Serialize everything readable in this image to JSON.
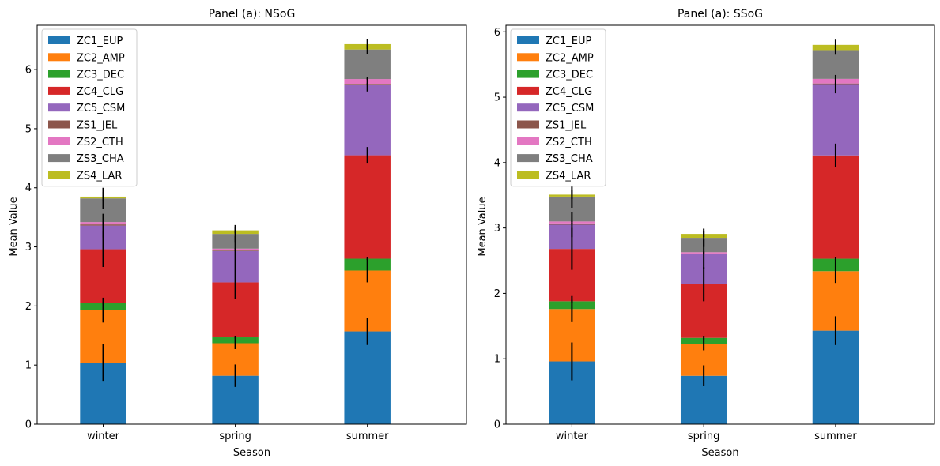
{
  "chart_data": [
    {
      "type": "bar",
      "stacked": true,
      "title": "Panel (a): NSoG",
      "xlabel": "Season",
      "ylabel": "Mean Value",
      "categories": [
        "winter",
        "spring",
        "summer"
      ],
      "ylim": [
        0,
        6.75
      ],
      "yticks": [
        0,
        1,
        2,
        3,
        4,
        5,
        6
      ],
      "legend_position": "top-left",
      "series": [
        {
          "name": "ZC1_EUP",
          "color": "#1f77b4",
          "values": [
            1.04,
            0.82,
            1.57
          ],
          "err": [
            0.32,
            0.19,
            0.23
          ]
        },
        {
          "name": "ZC2_AMP",
          "color": "#ff7f0e",
          "values": [
            0.89,
            0.55,
            1.03
          ],
          "err": [
            0.21,
            0.1,
            0.2
          ]
        },
        {
          "name": "ZC3_DEC",
          "color": "#2ca02c",
          "values": [
            0.12,
            0.1,
            0.2
          ],
          "err": [
            0.02,
            0.02,
            0.02
          ]
        },
        {
          "name": "ZC4_CLG",
          "color": "#d62728",
          "values": [
            0.91,
            0.93,
            1.75
          ],
          "err": [
            0.3,
            0.28,
            0.14
          ]
        },
        {
          "name": "ZC5_CSM",
          "color": "#9467bd",
          "values": [
            0.4,
            0.53,
            1.2
          ],
          "err": [
            0.2,
            0.25,
            0.12
          ]
        },
        {
          "name": "ZS1_JEL",
          "color": "#8c564b",
          "values": [
            0.02,
            0.01,
            0.01
          ],
          "err": [
            0.01,
            0.01,
            0.01
          ]
        },
        {
          "name": "ZS2_CTH",
          "color": "#e377c2",
          "values": [
            0.04,
            0.03,
            0.08
          ],
          "err": [
            0.01,
            0.01,
            0.01
          ]
        },
        {
          "name": "ZS3_CHA",
          "color": "#7f7f7f",
          "values": [
            0.4,
            0.25,
            0.5
          ],
          "err": [
            0.18,
            0.15,
            0.08
          ]
        },
        {
          "name": "ZS4_LAR",
          "color": "#bcbd22",
          "values": [
            0.03,
            0.06,
            0.09
          ],
          "err": [
            0.08,
            0.05,
            0.08
          ]
        }
      ]
    },
    {
      "type": "bar",
      "stacked": true,
      "title": "Panel (a): SSoG",
      "xlabel": "Season",
      "ylabel": "Mean Value",
      "categories": [
        "winter",
        "spring",
        "summer"
      ],
      "ylim": [
        0,
        6.1
      ],
      "yticks": [
        0,
        1,
        2,
        3,
        4,
        5,
        6
      ],
      "legend_position": "top-left",
      "series": [
        {
          "name": "ZC1_EUP",
          "color": "#1f77b4",
          "values": [
            0.96,
            0.74,
            1.43
          ],
          "err": [
            0.29,
            0.16,
            0.22
          ]
        },
        {
          "name": "ZC2_AMP",
          "color": "#ff7f0e",
          "values": [
            0.8,
            0.48,
            0.91
          ],
          "err": [
            0.2,
            0.09,
            0.18
          ]
        },
        {
          "name": "ZC3_DEC",
          "color": "#2ca02c",
          "values": [
            0.12,
            0.1,
            0.19
          ],
          "err": [
            0.02,
            0.02,
            0.02
          ]
        },
        {
          "name": "ZC4_CLG",
          "color": "#d62728",
          "values": [
            0.8,
            0.82,
            1.58
          ],
          "err": [
            0.32,
            0.26,
            0.18
          ]
        },
        {
          "name": "ZC5_CSM",
          "color": "#9467bd",
          "values": [
            0.37,
            0.46,
            1.09
          ],
          "err": [
            0.19,
            0.23,
            0.14
          ]
        },
        {
          "name": "ZS1_JEL",
          "color": "#8c564b",
          "values": [
            0.02,
            0.01,
            0.01
          ],
          "err": [
            0.01,
            0.01,
            0.01
          ]
        },
        {
          "name": "ZS2_CTH",
          "color": "#e377c2",
          "values": [
            0.03,
            0.02,
            0.07
          ],
          "err": [
            0.01,
            0.01,
            0.01
          ]
        },
        {
          "name": "ZS3_CHA",
          "color": "#7f7f7f",
          "values": [
            0.38,
            0.22,
            0.44
          ],
          "err": [
            0.17,
            0.14,
            0.07
          ]
        },
        {
          "name": "ZS4_LAR",
          "color": "#bcbd22",
          "values": [
            0.03,
            0.06,
            0.08
          ],
          "err": [
            0.07,
            0.05,
            0.08
          ]
        }
      ]
    }
  ]
}
